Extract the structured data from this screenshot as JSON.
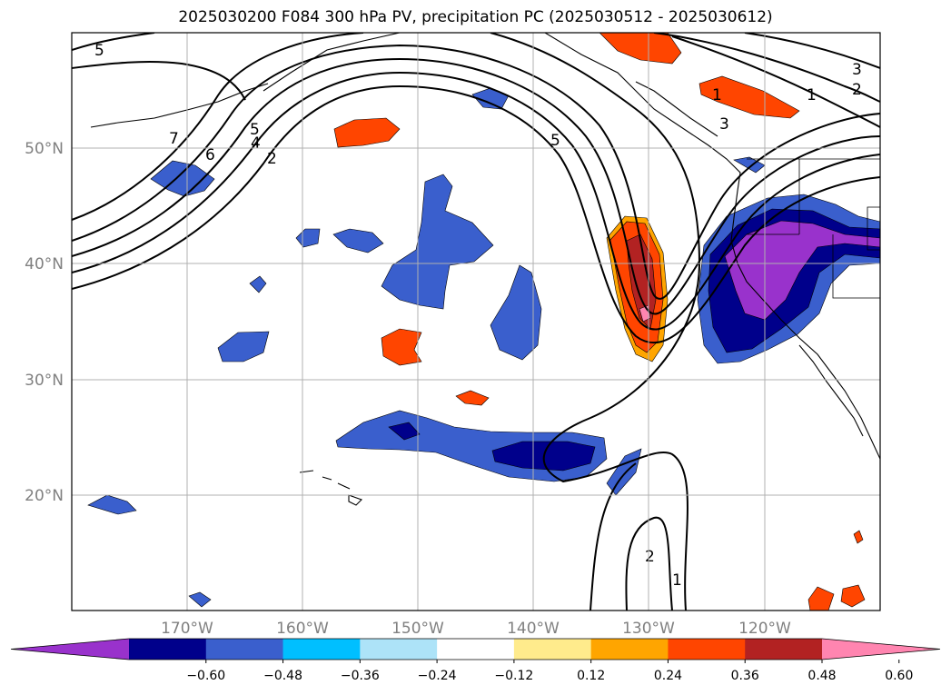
{
  "title": "2025030200 F084 300 hPa PV, precipitation PC (2025030512 - 2025030612)",
  "lat_labels": [
    "50°N",
    "40°N",
    "30°N",
    "20°N"
  ],
  "lon_labels": [
    "170°W",
    "160°W",
    "150°W",
    "140°W",
    "130°W",
    "120°W"
  ],
  "colorbar": {
    "ticks": [
      "−0.60",
      "−0.48",
      "−0.36",
      "−0.24",
      "−0.12",
      "0.12",
      "0.24",
      "0.36",
      "0.48",
      "0.60"
    ],
    "colors": [
      "#9932CC",
      "#00008B",
      "#3A5FCD",
      "#00BFFF",
      "#ADE3F8",
      "#FFFFFF",
      "#FFEB8C",
      "#FFA500",
      "#FF4500",
      "#B22222",
      "#FF85B0"
    ]
  },
  "pv_contour_labels": [
    "5",
    "7",
    "6",
    "5",
    "4",
    "2",
    "5",
    "1",
    "3",
    "2",
    "1",
    "3",
    "2",
    "1"
  ],
  "colors": {
    "land_outline": "#000000",
    "grid": "#b0b0b0",
    "contour": "#000000"
  }
}
